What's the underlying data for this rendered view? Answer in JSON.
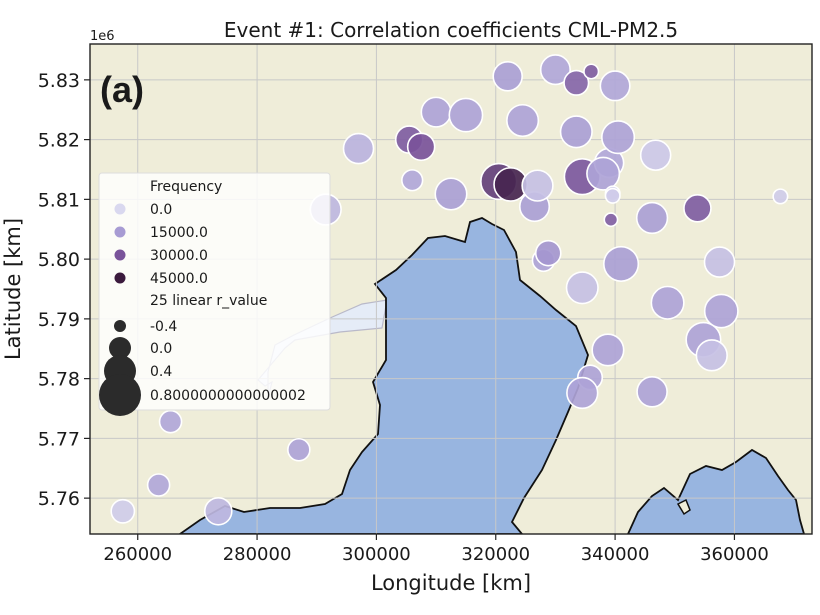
{
  "chart_data": {
    "type": "scatter",
    "title": "Event #1: Correlation coefficients CML-PM2.5",
    "panel_label": "(a)",
    "xlabel": "Longitude [km]",
    "ylabel": "Latitude [km]",
    "y_offset_text": "1e6",
    "xlim": [
      252000,
      373000
    ],
    "ylim": [
      5754000,
      5836000
    ],
    "xticks": [
      260000,
      280000,
      300000,
      320000,
      340000,
      360000
    ],
    "xtick_labels": [
      "260000",
      "280000",
      "300000",
      "320000",
      "340000",
      "360000"
    ],
    "yticks": [
      5760000,
      5770000,
      5780000,
      5790000,
      5800000,
      5810000,
      5820000,
      5830000
    ],
    "ytick_labels": [
      "5.76",
      "5.77",
      "5.78",
      "5.79",
      "5.80",
      "5.81",
      "5.82",
      "5.83"
    ],
    "grid": true,
    "colors": {
      "land": "#efedd9",
      "water": "#98b5e0",
      "water_light": "#e5ecf7",
      "coast": "#111111"
    },
    "legend": {
      "placement": "upper-left",
      "color_title": "Frequency",
      "color_entries": [
        {
          "label": "0.0",
          "color": "#d9d8ef"
        },
        {
          "label": "15000.0",
          "color": "#a79bd3"
        },
        {
          "label": "30000.0",
          "color": "#79539a"
        },
        {
          "label": "45000.0",
          "color": "#3b1a3d"
        }
      ],
      "size_title": "25 linear r_value",
      "size_entries": [
        {
          "label": "-0.4",
          "r_value": -0.4
        },
        {
          "label": "0.0",
          "r_value": 0.0
        },
        {
          "label": "0.4",
          "r_value": 0.4
        },
        {
          "label": "0.8000000000000002",
          "r_value": 0.8
        }
      ]
    },
    "points": [
      {
        "x": 257500,
        "y": 5757800,
        "r_value": 0.05,
        "frequency": 3000
      },
      {
        "x": 263500,
        "y": 5762200,
        "r_value": 0.0,
        "frequency": 12000
      },
      {
        "x": 265500,
        "y": 5772800,
        "r_value": 0.0,
        "frequency": 12000
      },
      {
        "x": 273500,
        "y": 5757800,
        "r_value": 0.2,
        "frequency": 8000
      },
      {
        "x": 287000,
        "y": 5768100,
        "r_value": 0.0,
        "frequency": 13000
      },
      {
        "x": 291500,
        "y": 5808300,
        "r_value": 0.35,
        "frequency": 8000
      },
      {
        "x": 297000,
        "y": 5818500,
        "r_value": 0.32,
        "frequency": 9000
      },
      {
        "x": 305500,
        "y": 5820000,
        "r_value": 0.2,
        "frequency": 28000
      },
      {
        "x": 307500,
        "y": 5818800,
        "r_value": 0.2,
        "frequency": 30000
      },
      {
        "x": 306000,
        "y": 5813200,
        "r_value": -0.05,
        "frequency": 12000
      },
      {
        "x": 310000,
        "y": 5824600,
        "r_value": 0.3,
        "frequency": 13000
      },
      {
        "x": 312500,
        "y": 5810900,
        "r_value": 0.38,
        "frequency": 14000
      },
      {
        "x": 315000,
        "y": 5824100,
        "r_value": 0.45,
        "frequency": 13000
      },
      {
        "x": 320500,
        "y": 5813000,
        "r_value": 0.55,
        "frequency": 35000
      },
      {
        "x": 322500,
        "y": 5812500,
        "r_value": 0.45,
        "frequency": 42000
      },
      {
        "x": 322000,
        "y": 5830600,
        "r_value": 0.28,
        "frequency": 14000
      },
      {
        "x": 324500,
        "y": 5823200,
        "r_value": 0.38,
        "frequency": 13000
      },
      {
        "x": 326500,
        "y": 5808800,
        "r_value": 0.3,
        "frequency": 14000
      },
      {
        "x": 327000,
        "y": 5812300,
        "r_value": 0.35,
        "frequency": 6000
      },
      {
        "x": 328000,
        "y": 5799800,
        "r_value": 0.0,
        "frequency": 13000
      },
      {
        "x": 328800,
        "y": 5801000,
        "r_value": 0.12,
        "frequency": 16000
      },
      {
        "x": 330000,
        "y": 5831700,
        "r_value": 0.3,
        "frequency": 12000
      },
      {
        "x": 333500,
        "y": 5829500,
        "r_value": 0.1,
        "frequency": 26000
      },
      {
        "x": 336000,
        "y": 5831400,
        "r_value": -0.3,
        "frequency": 28000
      },
      {
        "x": 333500,
        "y": 5821300,
        "r_value": 0.38,
        "frequency": 14000
      },
      {
        "x": 334500,
        "y": 5813800,
        "r_value": 0.55,
        "frequency": 29000
      },
      {
        "x": 339000,
        "y": 5816100,
        "r_value": 0.28,
        "frequency": 12000
      },
      {
        "x": 338000,
        "y": 5814300,
        "r_value": 0.42,
        "frequency": 13000
      },
      {
        "x": 340500,
        "y": 5820400,
        "r_value": 0.42,
        "frequency": 13000
      },
      {
        "x": 340000,
        "y": 5829000,
        "r_value": 0.3,
        "frequency": 12000
      },
      {
        "x": 339600,
        "y": 5811000,
        "r_value": -0.3,
        "frequency": 3000
      },
      {
        "x": 339600,
        "y": 5810600,
        "r_value": -0.3,
        "frequency": 3000
      },
      {
        "x": 339300,
        "y": 5806600,
        "r_value": -0.35,
        "frequency": 27000
      },
      {
        "x": 346800,
        "y": 5817400,
        "r_value": 0.32,
        "frequency": 4000
      },
      {
        "x": 346200,
        "y": 5806900,
        "r_value": 0.35,
        "frequency": 14000
      },
      {
        "x": 341000,
        "y": 5799200,
        "r_value": 0.5,
        "frequency": 14000
      },
      {
        "x": 353800,
        "y": 5808500,
        "r_value": 0.2,
        "frequency": 28000
      },
      {
        "x": 348800,
        "y": 5792700,
        "r_value": 0.42,
        "frequency": 13000
      },
      {
        "x": 357500,
        "y": 5799500,
        "r_value": 0.32,
        "frequency": 6000
      },
      {
        "x": 367700,
        "y": 5810500,
        "r_value": -0.3,
        "frequency": 3000
      },
      {
        "x": 357800,
        "y": 5791300,
        "r_value": 0.45,
        "frequency": 13000
      },
      {
        "x": 354800,
        "y": 5786500,
        "r_value": 0.5,
        "frequency": 13000
      },
      {
        "x": 356200,
        "y": 5783900,
        "r_value": 0.35,
        "frequency": 6000
      },
      {
        "x": 334500,
        "y": 5795200,
        "r_value": 0.38,
        "frequency": 6000
      },
      {
        "x": 338800,
        "y": 5784800,
        "r_value": 0.38,
        "frequency": 13000
      },
      {
        "x": 335800,
        "y": 5780200,
        "r_value": 0.1,
        "frequency": 13000
      },
      {
        "x": 334500,
        "y": 5777600,
        "r_value": 0.35,
        "frequency": 13000
      },
      {
        "x": 346200,
        "y": 5777800,
        "r_value": 0.32,
        "frequency": 13000
      }
    ]
  }
}
